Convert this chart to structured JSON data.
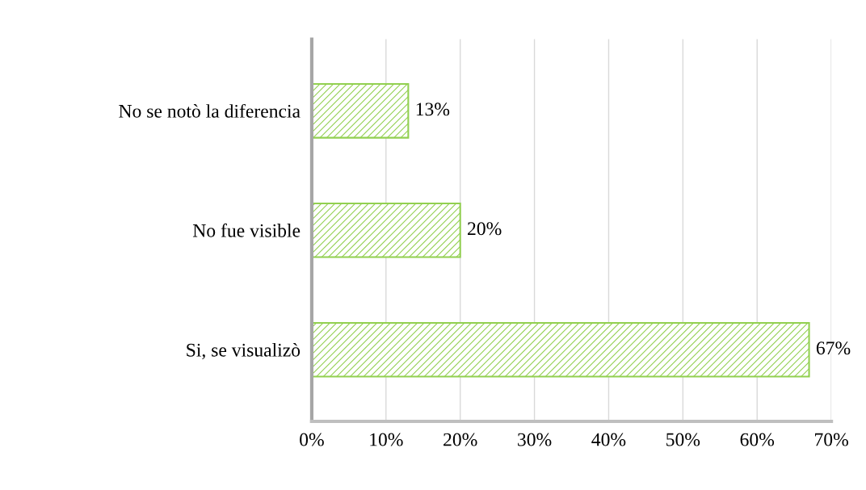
{
  "chart_data": {
    "type": "bar",
    "orientation": "horizontal",
    "categories": [
      "No se notò la diferencia",
      "No fue visible",
      "Si, se visualizò"
    ],
    "values": [
      13,
      20,
      67
    ],
    "value_labels": [
      "13%",
      "20%",
      "67%"
    ],
    "color": "#92d050",
    "xlim": [
      0,
      70
    ],
    "xticks": [
      {
        "value": 0,
        "label": "0%"
      },
      {
        "value": 10,
        "label": "10%"
      },
      {
        "value": 20,
        "label": "20%"
      },
      {
        "value": 30,
        "label": "30%"
      },
      {
        "value": 40,
        "label": "40%"
      },
      {
        "value": 50,
        "label": "50%"
      },
      {
        "value": 60,
        "label": "60%"
      },
      {
        "value": 70,
        "label": "70%"
      }
    ],
    "grid": "x"
  }
}
